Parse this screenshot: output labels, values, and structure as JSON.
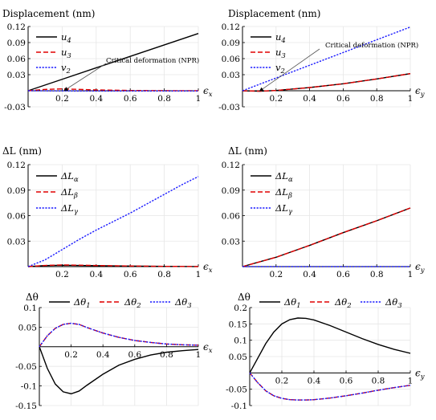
{
  "chart_data": [
    {
      "type": "line",
      "title": "Displacement (nm)",
      "xlabel": "ϵx",
      "xlim": [
        0,
        1
      ],
      "ylim": [
        -0.03,
        0.12
      ],
      "x_ticks": [
        "0.2",
        "0.4",
        "0.6",
        "0.8",
        "1"
      ],
      "y_ticks": [
        "0.12",
        "0.09",
        "0.06",
        "0.03",
        "-0.03"
      ],
      "grid": true,
      "legend_position": "top-left",
      "annotation": "Critical deformation (NPR)",
      "series": [
        {
          "name": "u4",
          "color": "#000000",
          "dash": "solid",
          "x": [
            0,
            0.2,
            0.4,
            0.6,
            0.8,
            1
          ],
          "values": [
            0,
            0.0214,
            0.0428,
            0.0642,
            0.0856,
            0.107
          ]
        },
        {
          "name": "u3",
          "color": "#e00000",
          "dash": "dashed",
          "x": [
            0,
            0.1,
            0.2,
            0.3,
            0.4,
            0.6,
            0.8,
            1
          ],
          "values": [
            0,
            0.0025,
            0.0035,
            0.0025,
            0.0015,
            0.0005,
            0.0002,
            0
          ]
        },
        {
          "name": "v2",
          "color": "#1a1aff",
          "dash": "dotted",
          "x": [
            0,
            0.2,
            0.4,
            0.6,
            0.8,
            1
          ],
          "values": [
            0,
            -0.0003,
            -0.0005,
            -0.0005,
            -0.0005,
            -0.0005
          ]
        }
      ]
    },
    {
      "type": "line",
      "title": "Displacement (nm)",
      "xlabel": "ϵy",
      "xlim": [
        0,
        1
      ],
      "ylim": [
        -0.03,
        0.12
      ],
      "x_ticks": [
        "0.2",
        "0.4",
        "0.6",
        "0.8",
        "1"
      ],
      "y_ticks": [
        "0.12",
        "0.09",
        "0.06",
        "0.03",
        "-0.03"
      ],
      "grid": true,
      "legend_position": "top-left",
      "annotation": "Critical deformation (NPR)",
      "series": [
        {
          "name": "u4",
          "color": "#000000",
          "dash": "solid",
          "x": [
            0,
            0.1,
            0.2,
            0.4,
            0.6,
            0.8,
            1
          ],
          "values": [
            0,
            -0.0008,
            0.0005,
            0.006,
            0.013,
            0.022,
            0.032
          ]
        },
        {
          "name": "u3",
          "color": "#e00000",
          "dash": "dashed",
          "x": [
            0,
            0.1,
            0.2,
            0.4,
            0.6,
            0.8,
            1
          ],
          "values": [
            0,
            -0.0008,
            0.0005,
            0.006,
            0.013,
            0.022,
            0.032
          ]
        },
        {
          "name": "v2",
          "color": "#1a1aff",
          "dash": "dotted",
          "x": [
            0,
            0.2,
            0.4,
            0.6,
            0.8,
            1
          ],
          "values": [
            0,
            0.0238,
            0.0476,
            0.0714,
            0.0952,
            0.119
          ]
        }
      ]
    },
    {
      "type": "line",
      "title": "ΔL (nm)",
      "xlabel": "ϵx",
      "xlim": [
        0,
        1
      ],
      "ylim": [
        0,
        0.12
      ],
      "x_ticks": [
        "0.2",
        "0.4",
        "0.6",
        "0.8",
        "1"
      ],
      "y_ticks": [
        "0.12",
        "0.09",
        "0.06",
        "0.03"
      ],
      "grid": true,
      "legend_position": "top-left",
      "series": [
        {
          "name": "ΔLα",
          "color": "#000000",
          "dash": "solid",
          "x": [
            0,
            0.1,
            0.2,
            0.3,
            0.4,
            0.6,
            0.8,
            1
          ],
          "values": [
            0,
            0.0012,
            0.0016,
            0.0014,
            0.0011,
            0.0006,
            0.0003,
            0.0001
          ]
        },
        {
          "name": "ΔLβ",
          "color": "#e00000",
          "dash": "dashed",
          "x": [
            0,
            0.1,
            0.2,
            0.3,
            0.4,
            0.6,
            0.8,
            1
          ],
          "values": [
            0,
            0.0014,
            0.002,
            0.0017,
            0.0013,
            0.0007,
            0.0003,
            0.0001
          ]
        },
        {
          "name": "ΔLγ",
          "color": "#1a1aff",
          "dash": "dotted",
          "x": [
            0,
            0.1,
            0.2,
            0.3,
            0.4,
            0.5,
            0.6,
            0.7,
            0.8,
            0.9,
            1
          ],
          "values": [
            0,
            0.008,
            0.02,
            0.032,
            0.043,
            0.053,
            0.063,
            0.074,
            0.085,
            0.096,
            0.106
          ]
        }
      ]
    },
    {
      "type": "line",
      "title": "ΔL (nm)",
      "xlabel": "ϵy",
      "xlim": [
        0,
        1
      ],
      "ylim": [
        0,
        0.12
      ],
      "x_ticks": [
        "0.2",
        "0.4",
        "0.6",
        "0.8",
        "1"
      ],
      "y_ticks": [
        "0.12",
        "0.09",
        "0.06",
        "0.03"
      ],
      "grid": true,
      "legend_position": "top-left",
      "series": [
        {
          "name": "ΔLα",
          "color": "#000000",
          "dash": "solid",
          "x": [
            0,
            0.2,
            0.4,
            0.6,
            0.8,
            1
          ],
          "values": [
            0,
            0.011,
            0.025,
            0.04,
            0.054,
            0.069
          ]
        },
        {
          "name": "ΔLβ",
          "color": "#e00000",
          "dash": "dashed",
          "x": [
            0,
            0.2,
            0.4,
            0.6,
            0.8,
            1
          ],
          "values": [
            0,
            0.011,
            0.025,
            0.04,
            0.054,
            0.069
          ]
        },
        {
          "name": "ΔLγ",
          "color": "#1a1aff",
          "dash": "dotted",
          "x": [
            0,
            1
          ],
          "values": [
            0,
            0
          ]
        }
      ]
    },
    {
      "type": "line",
      "title": "Δθ",
      "xlabel": "ϵx",
      "xlim": [
        0,
        1
      ],
      "ylim": [
        -0.15,
        0.1
      ],
      "x_ticks": [
        "0.2",
        "0.4",
        "0.6",
        "0.8",
        "1"
      ],
      "y_ticks": [
        "0.1",
        "0.05",
        "-0.05",
        "-0.1",
        "-0.15"
      ],
      "grid": true,
      "legend_position": "top",
      "series": [
        {
          "name": "Δθ1",
          "color": "#000000",
          "dash": "solid",
          "x": [
            0,
            0.05,
            0.1,
            0.15,
            0.2,
            0.25,
            0.3,
            0.4,
            0.5,
            0.6,
            0.7,
            0.8,
            0.9,
            1
          ],
          "values": [
            0,
            -0.055,
            -0.095,
            -0.115,
            -0.12,
            -0.113,
            -0.098,
            -0.07,
            -0.047,
            -0.032,
            -0.021,
            -0.014,
            -0.01,
            -0.007
          ]
        },
        {
          "name": "Δθ2",
          "color": "#e00000",
          "dash": "dashed",
          "x": [
            0,
            0.05,
            0.1,
            0.15,
            0.2,
            0.25,
            0.3,
            0.4,
            0.5,
            0.6,
            0.7,
            0.8,
            0.9,
            1
          ],
          "values": [
            0,
            0.028,
            0.047,
            0.057,
            0.06,
            0.057,
            0.049,
            0.035,
            0.024,
            0.016,
            0.011,
            0.007,
            0.005,
            0.004
          ]
        },
        {
          "name": "Δθ3",
          "color": "#1a1aff",
          "dash": "dotted",
          "x": [
            0,
            0.05,
            0.1,
            0.15,
            0.2,
            0.25,
            0.3,
            0.4,
            0.5,
            0.6,
            0.7,
            0.8,
            0.9,
            1
          ],
          "values": [
            0,
            0.028,
            0.047,
            0.057,
            0.06,
            0.057,
            0.049,
            0.035,
            0.024,
            0.016,
            0.011,
            0.007,
            0.005,
            0.004
          ]
        }
      ]
    },
    {
      "type": "line",
      "title": "Δθ",
      "xlabel": "ϵy",
      "xlim": [
        0,
        1
      ],
      "ylim": [
        -0.1,
        0.2
      ],
      "x_ticks": [
        "0.2",
        "0.4",
        "0.6",
        "0.8",
        "1"
      ],
      "y_ticks": [
        "0.2",
        "0.15",
        "0.1",
        "0.05",
        "-0.05",
        "-0.1"
      ],
      "grid": true,
      "legend_position": "top",
      "series": [
        {
          "name": "Δθ1",
          "color": "#000000",
          "dash": "solid",
          "x": [
            0,
            0.05,
            0.1,
            0.15,
            0.2,
            0.25,
            0.3,
            0.35,
            0.4,
            0.5,
            0.6,
            0.7,
            0.8,
            0.9,
            1
          ],
          "values": [
            0,
            0.045,
            0.09,
            0.125,
            0.15,
            0.163,
            0.168,
            0.167,
            0.162,
            0.145,
            0.125,
            0.105,
            0.087,
            0.072,
            0.06
          ]
        },
        {
          "name": "Δθ2",
          "color": "#e00000",
          "dash": "dashed",
          "x": [
            0,
            0.05,
            0.1,
            0.15,
            0.2,
            0.25,
            0.3,
            0.35,
            0.4,
            0.5,
            0.6,
            0.7,
            0.8,
            0.9,
            1
          ],
          "values": [
            0,
            -0.03,
            -0.055,
            -0.07,
            -0.078,
            -0.082,
            -0.083,
            -0.083,
            -0.082,
            -0.077,
            -0.07,
            -0.062,
            -0.053,
            -0.045,
            -0.038
          ]
        },
        {
          "name": "Δθ3",
          "color": "#1a1aff",
          "dash": "dotted",
          "x": [
            0,
            0.05,
            0.1,
            0.15,
            0.2,
            0.25,
            0.3,
            0.35,
            0.4,
            0.5,
            0.6,
            0.7,
            0.8,
            0.9,
            1
          ],
          "values": [
            0,
            -0.03,
            -0.055,
            -0.07,
            -0.078,
            -0.082,
            -0.083,
            -0.083,
            -0.082,
            -0.077,
            -0.07,
            -0.062,
            -0.053,
            -0.045,
            -0.038
          ]
        }
      ]
    }
  ]
}
